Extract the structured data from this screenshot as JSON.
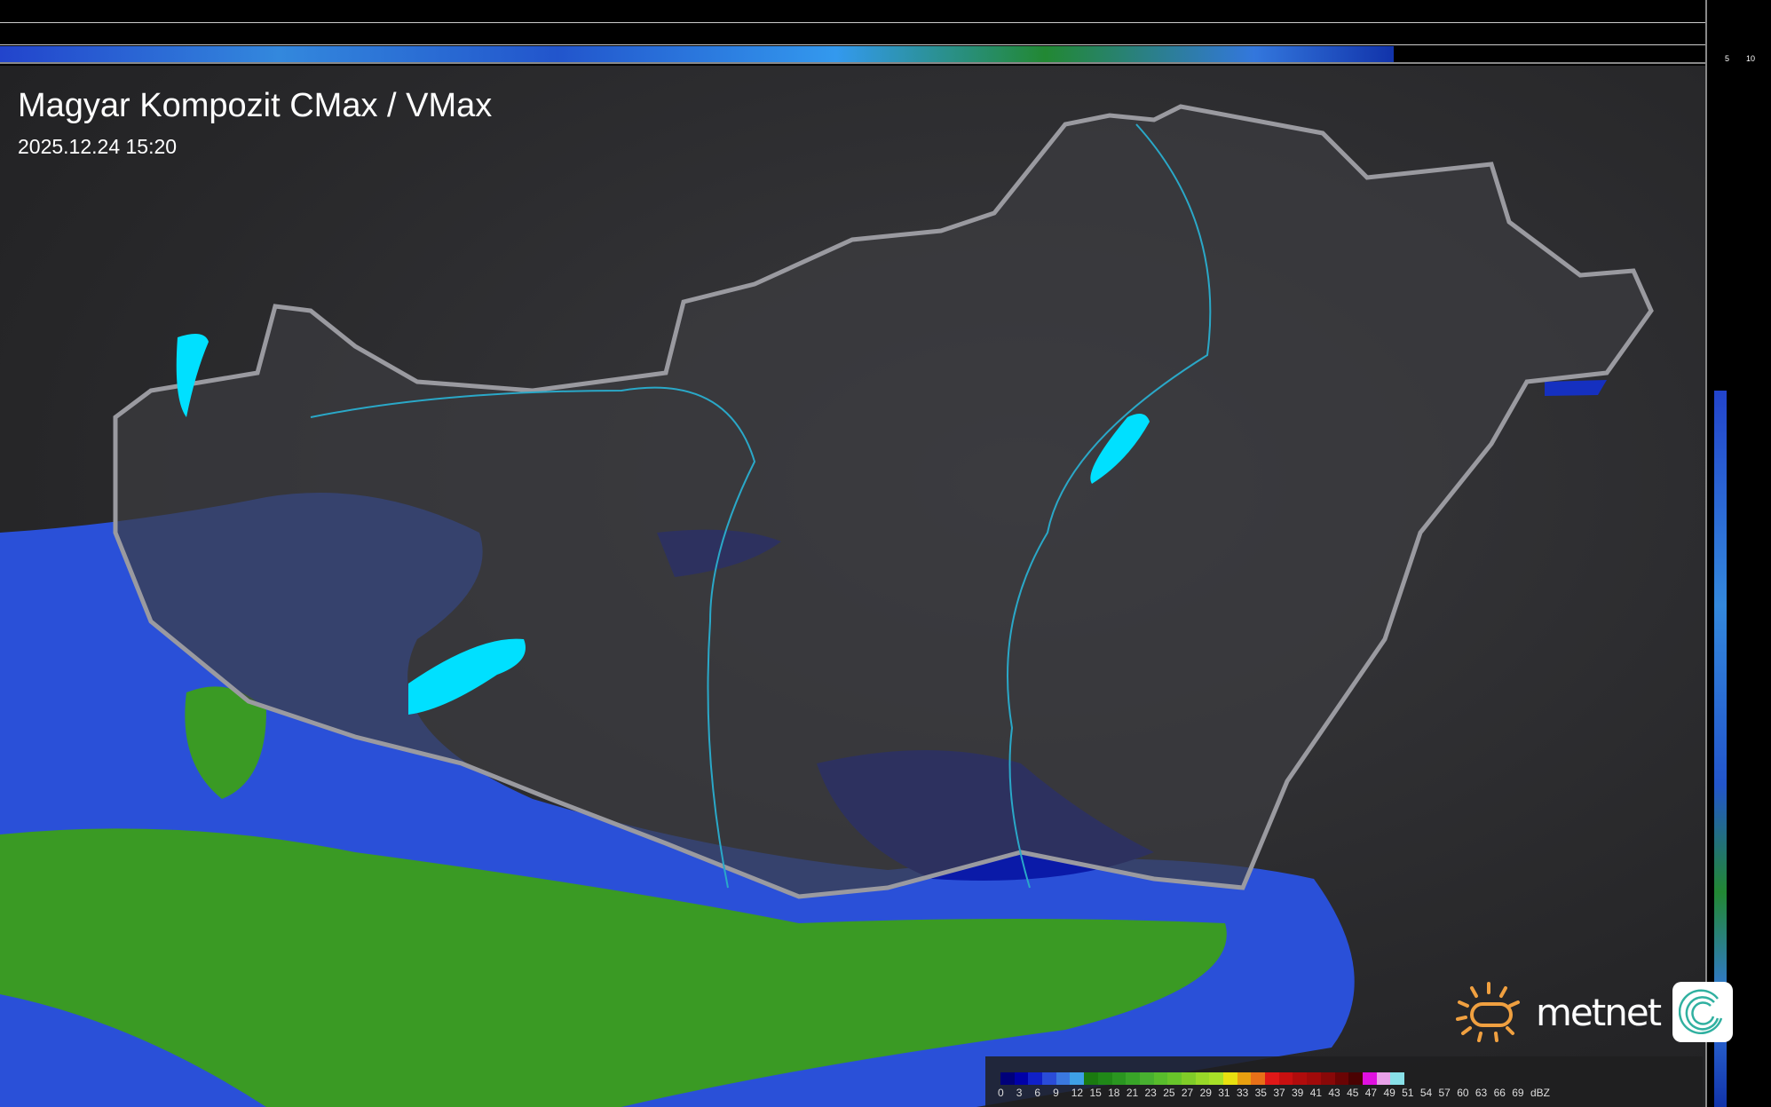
{
  "header": {
    "title": "Magyar Kompozit CMax / VMax",
    "timestamp": "2025.12.24 15:20"
  },
  "cross_section": {
    "top_ticks": [
      "10",
      "5"
    ],
    "right_ticks": [
      "5",
      "10"
    ]
  },
  "legend": {
    "unit": "dBZ",
    "labels": [
      "0",
      "3",
      "6",
      "9",
      "12",
      "15",
      "18",
      "21",
      "23",
      "25",
      "27",
      "29",
      "31",
      "33",
      "35",
      "37",
      "39",
      "41",
      "43",
      "45",
      "47",
      "49",
      "51",
      "54",
      "57",
      "60",
      "63",
      "66",
      "69"
    ],
    "colors": [
      "#00007a",
      "#0000a8",
      "#1020c8",
      "#2a4cd8",
      "#3a78e0",
      "#3ea0e6",
      "#1a7a10",
      "#208818",
      "#2a9620",
      "#38a428",
      "#48b030",
      "#58bc2c",
      "#68c42a",
      "#80cc28",
      "#98d828",
      "#a8e028",
      "#e8e010",
      "#e8a010",
      "#e87018",
      "#e01818",
      "#c81010",
      "#b00c0c",
      "#a00a0a",
      "#880808",
      "#6a0404",
      "#4a0202",
      "#e010e0",
      "#e8a0e8",
      "#88e0e8"
    ]
  },
  "branding": {
    "logo_text": "metnet",
    "sun_color": "#f0a040",
    "icon_color": "#30b0a0"
  },
  "map": {
    "region": "Hungary",
    "border_color": "#9a9aa0",
    "river_color": "#2aa8c8",
    "lake_color": "#00e0ff"
  }
}
